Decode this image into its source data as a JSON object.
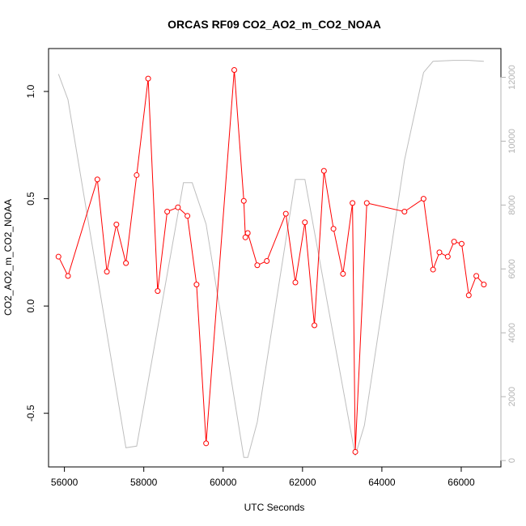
{
  "chart_data": {
    "type": "line",
    "title": "ORCAS RF09 CO2_AO2_m_CO2_NOAA",
    "xlabel": "UTC Seconds",
    "ylabel": "CO2_AO2_m_CO2_NOAA",
    "xlim": [
      55600,
      67000
    ],
    "ylim": [
      -0.75,
      1.2
    ],
    "y2lim": [
      -200,
      12900
    ],
    "x_ticks": [
      56000,
      58000,
      60000,
      62000,
      64000,
      66000
    ],
    "y_ticks": [
      -0.5,
      0.0,
      0.5,
      1.0
    ],
    "y_tick_labels": [
      "-0.5",
      "0.0",
      "0.5",
      "1.0"
    ],
    "y2_ticks": [
      0,
      2000,
      4000,
      6000,
      8000,
      10000,
      12000
    ],
    "grid": false,
    "legend": "none",
    "colors": {
      "primary": "#ff0000",
      "secondary": "#bebebe"
    },
    "series": [
      {
        "axis": "left",
        "style": "line-with-circle-markers",
        "x": [
          55850,
          56090,
          56830,
          57070,
          57310,
          57550,
          57820,
          58110,
          58350,
          58590,
          58860,
          59100,
          59330,
          59570,
          60280,
          60520,
          60560,
          60620,
          60860,
          61100,
          61580,
          61820,
          62060,
          62300,
          62540,
          62780,
          63020,
          63260,
          63330,
          63620,
          64570,
          65050,
          65290,
          65450,
          65660,
          65820,
          66010,
          66190,
          66380,
          66570
        ],
        "y": [
          0.23,
          0.14,
          0.59,
          0.16,
          0.38,
          0.2,
          0.61,
          1.06,
          0.07,
          0.44,
          0.46,
          0.42,
          0.1,
          -0.64,
          1.1,
          0.49,
          0.32,
          0.34,
          0.19,
          0.21,
          0.43,
          0.11,
          0.39,
          -0.09,
          0.63,
          0.36,
          0.15,
          0.48,
          -0.68,
          0.48,
          0.44,
          0.5,
          0.17,
          0.25,
          0.23,
          0.3,
          0.29,
          0.05,
          0.14,
          0.1
        ]
      },
      {
        "axis": "right",
        "style": "line",
        "x": [
          55850,
          56090,
          57550,
          57820,
          59000,
          59220,
          59570,
          60520,
          60620,
          60860,
          61820,
          62060,
          63330,
          63560,
          64570,
          65050,
          65290,
          65800,
          66190,
          66570
        ],
        "y": [
          12100,
          11300,
          400,
          450,
          8700,
          8700,
          7400,
          100,
          100,
          1200,
          8800,
          8800,
          150,
          1100,
          9400,
          12150,
          12500,
          12530,
          12530,
          12500
        ]
      }
    ]
  }
}
